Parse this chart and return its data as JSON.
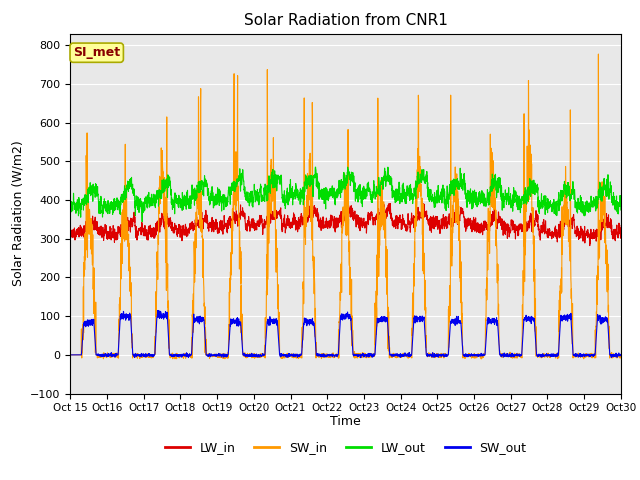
{
  "title": "Solar Radiation from CNR1",
  "xlabel": "Time",
  "ylabel": "Solar Radiation (W/m2)",
  "ylim": [
    -100,
    830
  ],
  "xlim": [
    0,
    15
  ],
  "bg_color": "#e8e8e8",
  "fig_color": "#ffffff",
  "grid_color": "#ffffff",
  "annotation_text": "SI_met",
  "annotation_box_color": "#ffff99",
  "annotation_box_edge": "#aaaa00",
  "annotation_text_color": "#880000",
  "legend_entries": [
    "LW_in",
    "SW_in",
    "LW_out",
    "SW_out"
  ],
  "line_colors": [
    "#dd0000",
    "#ff9900",
    "#00dd00",
    "#0000ee"
  ],
  "x_tick_labels": [
    "Oct 15",
    "Oct 16",
    "Oct 17",
    "Oct 18",
    "Oct 19",
    "Oct 20",
    "Oct 21",
    "Oct 22",
    "Oct 23",
    "Oct 24",
    "Oct 25",
    "Oct 26",
    "Oct 27",
    "Oct 28",
    "Oct 29",
    "Oct 30"
  ],
  "n_points": 3000
}
